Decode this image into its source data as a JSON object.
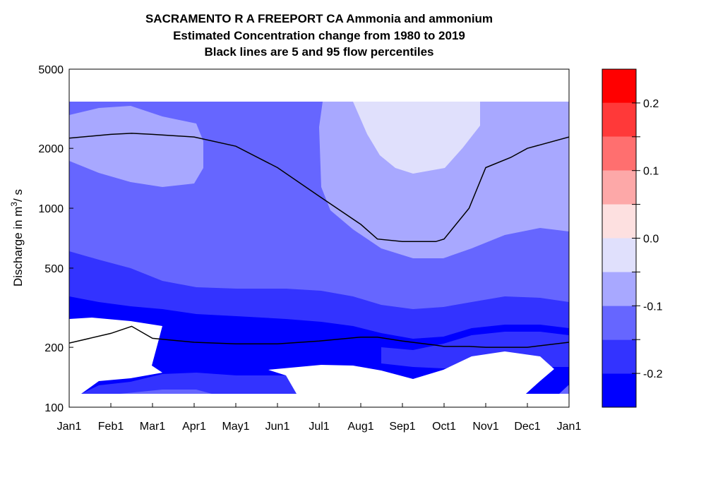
{
  "chart_data": {
    "type": "heatmap",
    "title": "SACRAMENTO R A FREEPORT CA  Ammonia and ammonium",
    "subtitle": "Estimated Concentration change from 1980 to 2019",
    "subtitle2": "Black lines are 5 and 95 flow percentiles",
    "ylabel_prefix": "Discharge in m",
    "ylabel_sup": "3",
    "ylabel_suffix": "/ s",
    "y_scale": "log",
    "ylim": [
      100,
      5000
    ],
    "y_ticks": [
      {
        "value": 100,
        "label": "100"
      },
      {
        "value": 200,
        "label": "200"
      },
      {
        "value": 500,
        "label": "500"
      },
      {
        "value": 1000,
        "label": "1000"
      },
      {
        "value": 2000,
        "label": "2000"
      },
      {
        "value": 5000,
        "label": "5000"
      }
    ],
    "x_ticks": [
      "Jan1",
      "Feb1",
      "Mar1",
      "Apr1",
      "May1",
      "Jun1",
      "Jul1",
      "Aug1",
      "Sep1",
      "Oct1",
      "Nov1",
      "Dec1",
      "Jan1"
    ],
    "colorbar": {
      "range": [
        -0.25,
        0.25
      ],
      "levels": [
        {
          "from": -0.25,
          "to": -0.2,
          "color": "#0000ff"
        },
        {
          "from": -0.2,
          "to": -0.15,
          "color": "#3333ff"
        },
        {
          "from": -0.15,
          "to": -0.1,
          "color": "#6666ff"
        },
        {
          "from": -0.1,
          "to": -0.05,
          "color": "#a8a8ff"
        },
        {
          "from": -0.05,
          "to": 0.0,
          "color": "#e0e0fc"
        },
        {
          "from": 0.0,
          "to": 0.05,
          "color": "#fde0e0"
        },
        {
          "from": 0.05,
          "to": 0.1,
          "color": "#fda8a8"
        },
        {
          "from": 0.1,
          "to": 0.15,
          "color": "#ff6f6f"
        },
        {
          "from": 0.15,
          "to": 0.2,
          "color": "#ff3939"
        },
        {
          "from": 0.2,
          "to": 0.25,
          "color": "#ff0000"
        }
      ],
      "tick_labels": [
        {
          "value": 0.2,
          "label": "0.2"
        },
        {
          "value": 0.1,
          "label": "0.1"
        },
        {
          "value": 0.0,
          "label": "0.0"
        },
        {
          "value": -0.1,
          "label": "-0.1"
        },
        {
          "value": -0.2,
          "label": "-0.2"
        }
      ]
    },
    "flow_percentiles": [
      {
        "name": "95th percentile",
        "x_month": [
          0,
          1,
          1.5,
          2,
          3,
          4,
          5,
          6,
          7,
          7.4,
          8,
          8.8,
          9,
          9.6,
          10,
          10.6,
          11,
          12
        ],
        "y": [
          2250,
          2350,
          2380,
          2350,
          2280,
          2050,
          1600,
          1150,
          830,
          700,
          680,
          680,
          700,
          1000,
          1600,
          1800,
          2000,
          2280
        ]
      },
      {
        "name": "5th percentile",
        "x_month": [
          0,
          1,
          1.5,
          2,
          3,
          4,
          5,
          6,
          7,
          7.4,
          8,
          8.8,
          9,
          9.6,
          10,
          10.6,
          11,
          12
        ],
        "y": [
          210,
          235,
          255,
          222,
          212,
          208,
          208,
          215,
          225,
          225,
          215,
          205,
          202,
          202,
          200,
          200,
          200,
          212
        ]
      }
    ]
  }
}
